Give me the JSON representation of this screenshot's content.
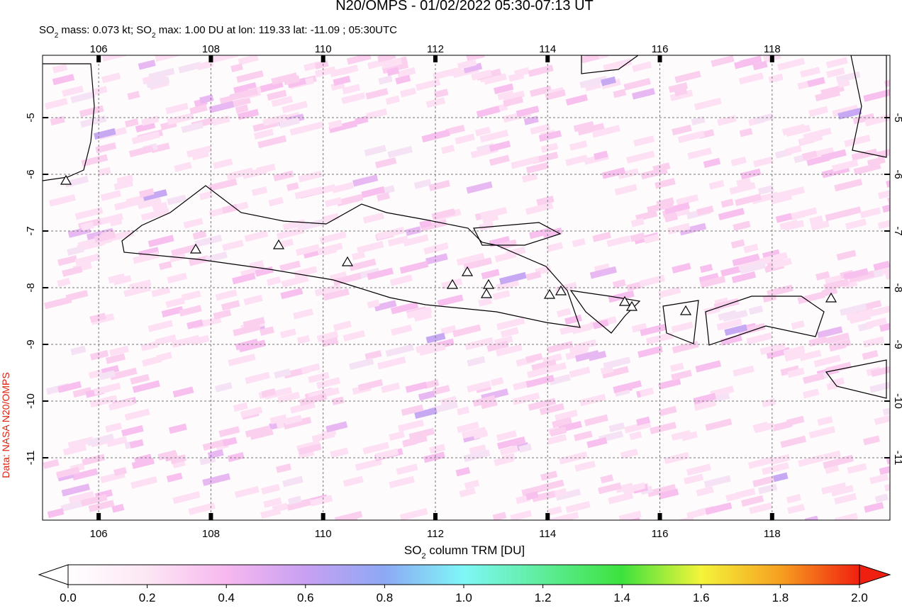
{
  "title": "N20/OMPS - 01/02/2022 05:30-07:13 UT",
  "subtitle": [
    "SO",
    "2",
    " mass: 0.073 kt; SO",
    "2",
    " max: 1.00 DU at lon: 119.33 lat: -11.09 ; 05:30UTC"
  ],
  "side_label": "Data: NASA N20/OMPS",
  "map": {
    "lonlim": [
      105,
      120.1
    ],
    "latlim": [
      -12.1,
      -3.9
    ],
    "lonticks": [
      106,
      108,
      110,
      112,
      114,
      116,
      118
    ],
    "latticks": [
      -5,
      -6,
      -7,
      -8,
      -9,
      -10,
      -11
    ],
    "grid": true
  },
  "colorbar": {
    "label": [
      "SO",
      "2",
      " column TRM [DU]"
    ],
    "lim": [
      0,
      2
    ],
    "ticks": [
      {
        "value": 0,
        "label": "0.0"
      },
      {
        "value": 0.2,
        "label": "0.2"
      },
      {
        "value": 0.4,
        "label": "0.4"
      },
      {
        "value": 0.6,
        "label": "0.6"
      },
      {
        "value": 0.8,
        "label": "0.8"
      },
      {
        "value": 1,
        "label": "1.0"
      },
      {
        "value": 1.2,
        "label": "1.2"
      },
      {
        "value": 1.4,
        "label": "1.4"
      },
      {
        "value": 1.6,
        "label": "1.6"
      },
      {
        "value": 1.8,
        "label": "1.8"
      },
      {
        "value": 2,
        "label": "2.0"
      }
    ]
  }
}
